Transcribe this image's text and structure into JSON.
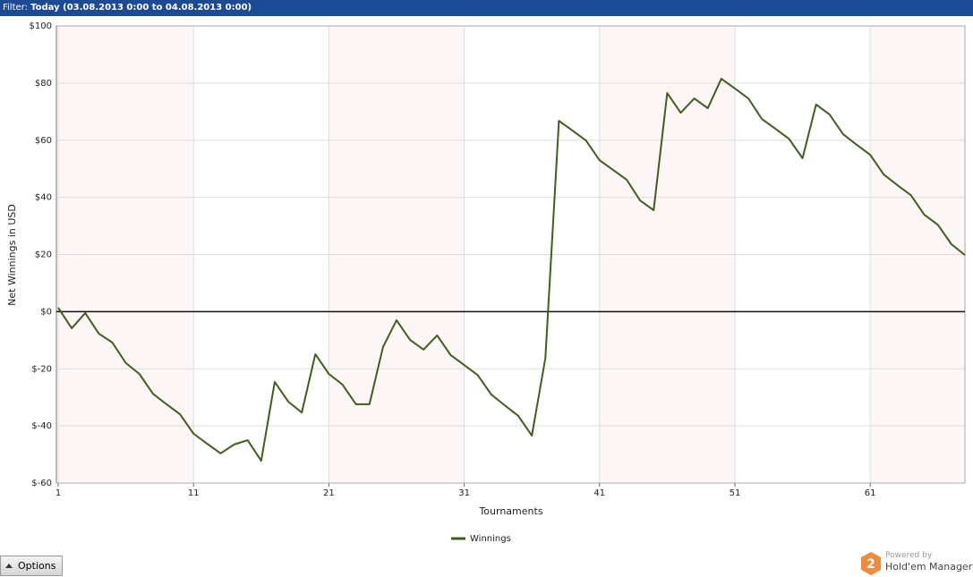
{
  "filter_label": "Filter:",
  "filter_value": "Today (03.08.2013 0:00 to 04.08.2013 0:00)",
  "options_button": "Options",
  "powered_by": "Powered by",
  "brand": "Hold'em Manager",
  "brand_logo_number": "2",
  "chart_data": {
    "type": "line",
    "x_label": "Tournaments",
    "y_label": "Net Winnings in USD",
    "x": [
      1,
      2,
      3,
      4,
      5,
      6,
      7,
      8,
      9,
      10,
      11,
      12,
      13,
      14,
      15,
      16,
      17,
      18,
      19,
      20,
      21,
      22,
      23,
      24,
      25,
      26,
      27,
      28,
      29,
      30,
      31,
      32,
      33,
      34,
      35,
      36,
      37,
      38,
      39,
      40,
      41,
      42,
      43,
      44,
      45,
      46,
      47,
      48,
      49,
      50,
      51,
      52,
      53,
      54,
      55,
      56,
      57,
      58,
      59,
      60,
      61,
      62,
      63,
      64,
      65,
      66,
      67,
      68
    ],
    "series": [
      {
        "name": "Winnings",
        "color": "#3f5e20",
        "values": [
          1.4,
          -5.8,
          -0.5,
          -7.7,
          -10.8,
          -18,
          -21.8,
          -28.7,
          -32.4,
          -35.9,
          -42.7,
          -46.2,
          -49.6,
          -46.5,
          -45,
          -52.2,
          -24.6,
          -31.5,
          -35.3,
          -14.9,
          -21.8,
          -25.5,
          -32.4,
          -32.4,
          -12.4,
          -3,
          -9.9,
          -13.3,
          -8.3,
          -15.2,
          -18.7,
          -22.2,
          -29,
          -32.8,
          -36.5,
          -43.4,
          -16.2,
          66.8,
          63.4,
          59.9,
          53,
          49.6,
          46.2,
          38.9,
          35.5,
          76.5,
          69.6,
          74.6,
          71.2,
          81.5,
          78.1,
          74.6,
          67.4,
          64,
          60.5,
          53.7,
          72.5,
          69,
          62.1,
          58.4,
          54.9,
          48,
          44.3,
          40.8,
          33.9,
          30.4,
          23.6,
          19.8
        ]
      }
    ],
    "xlim": [
      1,
      68
    ],
    "xticks": [
      1,
      11,
      21,
      31,
      41,
      51,
      61
    ],
    "ylim": [
      -60,
      100
    ],
    "yticks": [
      {
        "value": -60,
        "label": "$-60"
      },
      {
        "value": -40,
        "label": "$-40"
      },
      {
        "value": -20,
        "label": "$-20"
      },
      {
        "value": 0,
        "label": "$0"
      },
      {
        "value": 20,
        "label": "$20"
      },
      {
        "value": 40,
        "label": "$40"
      },
      {
        "value": 60,
        "label": "$60"
      },
      {
        "value": 80,
        "label": "$80"
      },
      {
        "value": 100,
        "label": "$100"
      }
    ],
    "grid": true,
    "legend": "bottom"
  }
}
